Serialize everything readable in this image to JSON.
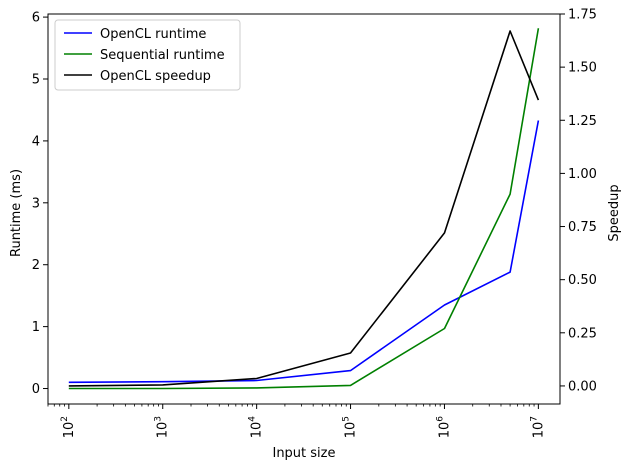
{
  "chart_data": {
    "type": "line",
    "xlabel": "Input size",
    "ylabel": "Runtime (ms)",
    "y2label": "Speedup",
    "xscale": "log",
    "xlim": [
      60,
      17000000
    ],
    "ylim": [
      -0.25,
      6.05
    ],
    "y2lim": [
      -0.085,
      1.75
    ],
    "x": [
      100,
      1000,
      10000,
      100000,
      1000000,
      5000000,
      10000000
    ],
    "x_ticks": [
      100,
      1000,
      10000,
      100000,
      1000000,
      10000000
    ],
    "x_tick_labels": [
      {
        "base": "10",
        "exp": "2"
      },
      {
        "base": "10",
        "exp": "3"
      },
      {
        "base": "10",
        "exp": "4"
      },
      {
        "base": "10",
        "exp": "5"
      },
      {
        "base": "10",
        "exp": "6"
      },
      {
        "base": "10",
        "exp": "7"
      }
    ],
    "y_ticks": [
      "0",
      "1",
      "2",
      "3",
      "4",
      "5",
      "6"
    ],
    "y2_ticks": [
      "0.00",
      "0.25",
      "0.50",
      "0.75",
      "1.00",
      "1.25",
      "1.50",
      "1.75"
    ],
    "series": [
      {
        "name": "OpenCL runtime",
        "axis": "left",
        "color": "#0000ff",
        "values": [
          0.1,
          0.11,
          0.13,
          0.29,
          1.35,
          1.88,
          4.33
        ]
      },
      {
        "name": "Sequential runtime",
        "axis": "left",
        "color": "#008000",
        "values": [
          0.0,
          0.0,
          0.01,
          0.05,
          0.97,
          3.14,
          5.82
        ]
      },
      {
        "name": "OpenCL speedup",
        "axis": "right",
        "color": "#000000",
        "values": [
          0.0,
          0.005,
          0.035,
          0.155,
          0.72,
          1.67,
          1.345
        ]
      }
    ],
    "legend_position": "top-left",
    "grid": false
  }
}
